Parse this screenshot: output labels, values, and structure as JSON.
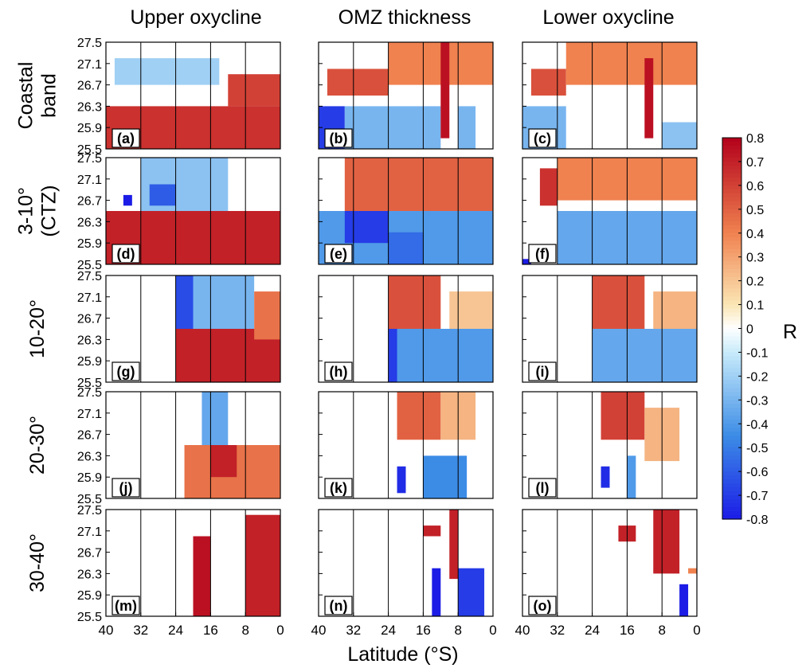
{
  "figure": {
    "column_titles": [
      "Upper oxycline",
      "OMZ thickness",
      "Lower oxycline"
    ],
    "row_titles": [
      [
        "Coastal",
        "band"
      ],
      [
        "3-10°",
        "(CTZ)"
      ],
      [
        "10-20°"
      ],
      [
        "20-30°"
      ],
      [
        "30-40°"
      ]
    ],
    "panel_labels": [
      "(a)",
      "(b)",
      "(c)",
      "(d)",
      "(e)",
      "(f)",
      "(g)",
      "(h)",
      "(i)",
      "(j)",
      "(k)",
      "(l)",
      "(m)",
      "(n)",
      "(o)"
    ],
    "y_tick_labels": [
      "27.5",
      "27.1",
      "26.7",
      "26.3",
      "25.9",
      "25.5"
    ],
    "x_tick_labels": [
      "40",
      "32",
      "24",
      "16",
      "8",
      "0"
    ],
    "xlabel": "Latitude (°S)",
    "colorbar_label": "R",
    "colorbar_tick_labels": [
      "0.8",
      "0.7",
      "0.6",
      "0.5",
      "0.4",
      "0.3",
      "0.2",
      "0.1",
      "0",
      "-0.1",
      "-0.2",
      "-0.3",
      "-0.4",
      "-0.5",
      "-0.6",
      "-0.7",
      "-0.8"
    ]
  },
  "chart_data": {
    "type": "heatmap",
    "x": {
      "label": "Latitude (°S)",
      "range": [
        40,
        0
      ],
      "ticks": [
        40,
        32,
        24,
        16,
        8,
        0
      ],
      "vertical_lines": [
        32,
        24,
        16,
        8
      ]
    },
    "y": {
      "label": "",
      "range": [
        25.5,
        27.5
      ],
      "ticks": [
        27.5,
        27.1,
        26.7,
        26.3,
        25.9,
        25.5
      ]
    },
    "colorbar": {
      "label": "R",
      "range": [
        -0.8,
        0.8
      ],
      "colormap": "blue-white-red"
    },
    "colors": {
      "negative_end": "#1c1ce6",
      "zero": "#ffffff",
      "positive_end": "#b3001b"
    },
    "rows": [
      "Coastal band",
      "3-10° (CTZ)",
      "10-20°",
      "20-30°",
      "30-40°"
    ],
    "columns": [
      "Upper oxycline",
      "OMZ thickness",
      "Lower oxycline"
    ],
    "panels": [
      {
        "label": "(a)",
        "row": 0,
        "col": 0,
        "regions": [
          {
            "lat": [
              40,
              0
            ],
            "density": [
              25.5,
              26.3
            ],
            "r": 0.65
          },
          {
            "lat": [
              38,
              14
            ],
            "density": [
              26.7,
              27.2
            ],
            "r": -0.2
          },
          {
            "lat": [
              12,
              0
            ],
            "density": [
              26.3,
              26.9
            ],
            "r": 0.6
          }
        ]
      },
      {
        "label": "(b)",
        "row": 0,
        "col": 1,
        "regions": [
          {
            "lat": [
              40,
              34
            ],
            "density": [
              25.5,
              26.3
            ],
            "r": -0.7
          },
          {
            "lat": [
              34,
              12
            ],
            "density": [
              25.5,
              26.3
            ],
            "r": -0.3
          },
          {
            "lat": [
              38,
              24
            ],
            "density": [
              26.5,
              27.0
            ],
            "r": 0.55
          },
          {
            "lat": [
              24,
              0
            ],
            "density": [
              26.7,
              27.5
            ],
            "r": 0.4
          },
          {
            "lat": [
              12,
              10
            ],
            "density": [
              25.7,
              27.5
            ],
            "r": 0.75
          },
          {
            "lat": [
              8,
              4
            ],
            "density": [
              25.5,
              26.3
            ],
            "r": -0.3
          }
        ]
      },
      {
        "label": "(c)",
        "row": 0,
        "col": 2,
        "regions": [
          {
            "lat": [
              40,
              30
            ],
            "density": [
              25.5,
              26.3
            ],
            "r": -0.3
          },
          {
            "lat": [
              38,
              30
            ],
            "density": [
              26.5,
              27.0
            ],
            "r": 0.55
          },
          {
            "lat": [
              30,
              0
            ],
            "density": [
              26.7,
              27.5
            ],
            "r": 0.4
          },
          {
            "lat": [
              12,
              10
            ],
            "density": [
              25.7,
              27.2
            ],
            "r": 0.75
          },
          {
            "lat": [
              8,
              0
            ],
            "density": [
              25.5,
              26.0
            ],
            "r": -0.25
          }
        ]
      },
      {
        "label": "(d)",
        "row": 1,
        "col": 0,
        "regions": [
          {
            "lat": [
              40,
              0
            ],
            "density": [
              25.5,
              26.5
            ],
            "r": 0.7
          },
          {
            "lat": [
              32,
              12
            ],
            "density": [
              26.5,
              27.5
            ],
            "r": -0.25
          },
          {
            "lat": [
              30,
              24
            ],
            "density": [
              26.6,
              27.0
            ],
            "r": -0.6
          },
          {
            "lat": [
              36,
              34
            ],
            "density": [
              26.6,
              26.8
            ],
            "r": -0.8
          }
        ]
      },
      {
        "label": "(e)",
        "row": 1,
        "col": 1,
        "regions": [
          {
            "lat": [
              40,
              0
            ],
            "density": [
              25.5,
              26.5
            ],
            "r": -0.4
          },
          {
            "lat": [
              34,
              24
            ],
            "density": [
              25.9,
              26.5
            ],
            "r": -0.7
          },
          {
            "lat": [
              34,
              0
            ],
            "density": [
              26.5,
              27.5
            ],
            "r": 0.5
          },
          {
            "lat": [
              24,
              16
            ],
            "density": [
              25.5,
              26.1
            ],
            "r": -0.55
          }
        ]
      },
      {
        "label": "(f)",
        "row": 1,
        "col": 2,
        "regions": [
          {
            "lat": [
              36,
              32
            ],
            "density": [
              26.6,
              27.3
            ],
            "r": 0.65
          },
          {
            "lat": [
              32,
              0
            ],
            "density": [
              26.7,
              27.5
            ],
            "r": 0.4
          },
          {
            "lat": [
              32,
              0
            ],
            "density": [
              25.5,
              26.5
            ],
            "r": -0.35
          },
          {
            "lat": [
              40,
              38
            ],
            "density": [
              25.5,
              25.6
            ],
            "r": -0.8
          }
        ]
      },
      {
        "label": "(g)",
        "row": 2,
        "col": 0,
        "regions": [
          {
            "lat": [
              24,
              0
            ],
            "density": [
              25.5,
              26.5
            ],
            "r": 0.7
          },
          {
            "lat": [
              24,
              6
            ],
            "density": [
              26.5,
              27.5
            ],
            "r": -0.3
          },
          {
            "lat": [
              24,
              20
            ],
            "density": [
              26.5,
              27.5
            ],
            "r": -0.65
          },
          {
            "lat": [
              6,
              0
            ],
            "density": [
              26.3,
              27.2
            ],
            "r": 0.45
          }
        ]
      },
      {
        "label": "(h)",
        "row": 2,
        "col": 1,
        "regions": [
          {
            "lat": [
              24,
              0
            ],
            "density": [
              25.5,
              26.5
            ],
            "r": -0.4
          },
          {
            "lat": [
              24,
              22
            ],
            "density": [
              25.5,
              26.5
            ],
            "r": -0.7
          },
          {
            "lat": [
              24,
              12
            ],
            "density": [
              26.5,
              27.5
            ],
            "r": 0.55
          },
          {
            "lat": [
              10,
              0
            ],
            "density": [
              26.5,
              27.2
            ],
            "r": 0.2
          }
        ]
      },
      {
        "label": "(i)",
        "row": 2,
        "col": 2,
        "regions": [
          {
            "lat": [
              24,
              0
            ],
            "density": [
              25.5,
              26.5
            ],
            "r": -0.35
          },
          {
            "lat": [
              24,
              12
            ],
            "density": [
              26.5,
              27.5
            ],
            "r": 0.55
          },
          {
            "lat": [
              10,
              0
            ],
            "density": [
              26.5,
              27.2
            ],
            "r": 0.25
          }
        ]
      },
      {
        "label": "(j)",
        "row": 3,
        "col": 0,
        "regions": [
          {
            "lat": [
              22,
              0
            ],
            "density": [
              25.5,
              26.5
            ],
            "r": 0.45
          },
          {
            "lat": [
              18,
              12
            ],
            "density": [
              26.5,
              27.5
            ],
            "r": -0.35
          },
          {
            "lat": [
              16,
              10
            ],
            "density": [
              25.9,
              26.5
            ],
            "r": 0.7
          }
        ]
      },
      {
        "label": "(k)",
        "row": 3,
        "col": 1,
        "regions": [
          {
            "lat": [
              22,
              12
            ],
            "density": [
              26.6,
              27.5
            ],
            "r": 0.5
          },
          {
            "lat": [
              12,
              4
            ],
            "density": [
              26.6,
              27.5
            ],
            "r": 0.25
          },
          {
            "lat": [
              22,
              20
            ],
            "density": [
              25.6,
              26.1
            ],
            "r": -0.75
          },
          {
            "lat": [
              16,
              6
            ],
            "density": [
              25.5,
              26.3
            ],
            "r": -0.45
          }
        ]
      },
      {
        "label": "(l)",
        "row": 3,
        "col": 2,
        "regions": [
          {
            "lat": [
              22,
              12
            ],
            "density": [
              26.6,
              27.5
            ],
            "r": 0.6
          },
          {
            "lat": [
              12,
              4
            ],
            "density": [
              26.2,
              27.2
            ],
            "r": 0.25
          },
          {
            "lat": [
              22,
              20
            ],
            "density": [
              25.7,
              26.1
            ],
            "r": -0.75
          },
          {
            "lat": [
              16,
              14
            ],
            "density": [
              25.5,
              26.3
            ],
            "r": -0.4
          }
        ]
      },
      {
        "label": "(m)",
        "row": 4,
        "col": 0,
        "regions": [
          {
            "lat": [
              20,
              16
            ],
            "density": [
              25.5,
              27.0
            ],
            "r": 0.75
          },
          {
            "lat": [
              8,
              0
            ],
            "density": [
              25.5,
              27.4
            ],
            "r": 0.7
          }
        ]
      },
      {
        "label": "(n)",
        "row": 4,
        "col": 1,
        "regions": [
          {
            "lat": [
              16,
              12
            ],
            "density": [
              27.0,
              27.2
            ],
            "r": 0.7
          },
          {
            "lat": [
              10,
              8
            ],
            "density": [
              26.2,
              27.5
            ],
            "r": 0.7
          },
          {
            "lat": [
              14,
              12
            ],
            "density": [
              25.5,
              26.4
            ],
            "r": -0.8
          },
          {
            "lat": [
              8,
              2
            ],
            "density": [
              25.5,
              26.4
            ],
            "r": -0.7
          }
        ]
      },
      {
        "label": "(o)",
        "row": 4,
        "col": 2,
        "regions": [
          {
            "lat": [
              18,
              14
            ],
            "density": [
              26.9,
              27.2
            ],
            "r": 0.7
          },
          {
            "lat": [
              10,
              4
            ],
            "density": [
              26.3,
              27.5
            ],
            "r": 0.7
          },
          {
            "lat": [
              4,
              2
            ],
            "density": [
              25.5,
              26.1
            ],
            "r": -0.8
          },
          {
            "lat": [
              2,
              0
            ],
            "density": [
              26.3,
              26.4
            ],
            "r": 0.4
          }
        ]
      }
    ]
  }
}
